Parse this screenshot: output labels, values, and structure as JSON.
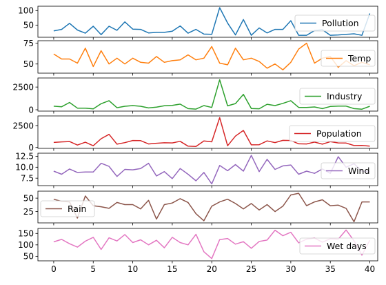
{
  "chart_data": [
    {
      "type": "line",
      "x": [
        0,
        1,
        2,
        3,
        4,
        5,
        6,
        7,
        8,
        9,
        10,
        11,
        12,
        13,
        14,
        15,
        16,
        17,
        18,
        19,
        20,
        21,
        22,
        23,
        24,
        25,
        26,
        27,
        28,
        29,
        30,
        31,
        32,
        33,
        34,
        35,
        36,
        37,
        38,
        39,
        40
      ],
      "series": [
        {
          "name": "Pollution",
          "color": "#1f77b4",
          "values": [
            30,
            35,
            56,
            33,
            22,
            46,
            17,
            46,
            32,
            61,
            36,
            35,
            23,
            25,
            25,
            29,
            47,
            22,
            35,
            19,
            18,
            110,
            57,
            16,
            69,
            15,
            40,
            23,
            35,
            35,
            65,
            15,
            15,
            31,
            34,
            15,
            16,
            18,
            20,
            15,
            90
          ]
        }
      ],
      "ylim": [
        8,
        115
      ],
      "yticks": [
        50,
        100
      ],
      "xlim": [
        -2,
        41
      ],
      "legend_position": "right"
    },
    {
      "type": "line",
      "x": [
        0,
        1,
        2,
        3,
        4,
        5,
        6,
        7,
        8,
        9,
        10,
        11,
        12,
        13,
        14,
        15,
        16,
        17,
        18,
        19,
        20,
        21,
        22,
        23,
        24,
        25,
        26,
        27,
        28,
        29,
        30,
        31,
        32,
        33,
        34,
        35,
        36,
        37,
        38,
        39,
        40
      ],
      "series": [
        {
          "name": "Temp",
          "color": "#ff7f0e",
          "values": [
            62,
            56,
            56,
            51,
            69,
            47,
            66,
            50,
            57,
            50,
            57,
            52,
            51,
            59,
            52,
            54,
            55,
            61,
            55,
            57,
            71,
            51,
            49,
            69,
            55,
            57,
            53,
            45,
            50,
            43,
            52,
            68,
            75,
            51,
            57,
            59,
            46,
            54,
            48,
            52,
            49
          ]
        }
      ],
      "ylim": [
        39,
        78
      ],
      "yticks": [
        50,
        75
      ],
      "xlim": [
        -2,
        41
      ],
      "legend_position": "right"
    },
    {
      "type": "line",
      "x": [
        0,
        1,
        2,
        3,
        4,
        5,
        6,
        7,
        8,
        9,
        10,
        11,
        12,
        13,
        14,
        15,
        16,
        17,
        18,
        19,
        20,
        21,
        22,
        23,
        24,
        25,
        26,
        27,
        28,
        29,
        30,
        31,
        32,
        33,
        34,
        35,
        36,
        37,
        38,
        39,
        40
      ],
      "series": [
        {
          "name": "Industry",
          "color": "#2ca02c",
          "values": [
            390,
            330,
            800,
            180,
            180,
            100,
            660,
            1000,
            220,
            380,
            460,
            380,
            200,
            280,
            440,
            480,
            620,
            120,
            70,
            460,
            250,
            3300,
            430,
            680,
            1700,
            130,
            110,
            600,
            460,
            700,
            1000,
            250,
            250,
            310,
            120,
            360,
            400,
            400,
            120,
            60,
            380
          ]
        }
      ],
      "ylim": [
        -150,
        3500
      ],
      "yticks": [
        0,
        2500
      ],
      "xlim": [
        -2,
        41
      ],
      "legend_position": "right"
    },
    {
      "type": "line",
      "x": [
        0,
        1,
        2,
        3,
        4,
        5,
        6,
        7,
        8,
        9,
        10,
        11,
        12,
        13,
        14,
        15,
        16,
        17,
        18,
        19,
        20,
        21,
        22,
        23,
        24,
        25,
        26,
        27,
        28,
        29,
        30,
        31,
        32,
        33,
        34,
        35,
        36,
        37,
        38,
        39,
        40
      ],
      "series": [
        {
          "name": "Population",
          "color": "#d62728",
          "values": [
            580,
            640,
            680,
            280,
            600,
            200,
            1000,
            1500,
            380,
            550,
            800,
            780,
            400,
            480,
            540,
            520,
            700,
            150,
            110,
            750,
            650,
            3400,
            200,
            1300,
            1950,
            300,
            320,
            750,
            560,
            810,
            800,
            420,
            400,
            620,
            380,
            660,
            520,
            510,
            220,
            240,
            160
          ]
        }
      ],
      "ylim": [
        -100,
        3600
      ],
      "yticks": [
        0,
        2500
      ],
      "xlim": [
        -2,
        41
      ],
      "legend_position": "right"
    },
    {
      "type": "line",
      "x": [
        0,
        1,
        2,
        3,
        4,
        5,
        6,
        7,
        8,
        9,
        10,
        11,
        12,
        13,
        14,
        15,
        16,
        17,
        18,
        19,
        20,
        21,
        22,
        23,
        24,
        25,
        26,
        27,
        28,
        29,
        30,
        31,
        32,
        33,
        34,
        35,
        36,
        37,
        38,
        39,
        40
      ],
      "series": [
        {
          "name": "Wind",
          "color": "#9467bd",
          "values": [
            9.1,
            8.4,
            9.6,
            8.8,
            8.9,
            8.9,
            10.9,
            10.2,
            7.9,
            9.5,
            9.4,
            9.7,
            10.9,
            8.0,
            9.0,
            7.4,
            9.7,
            8.4,
            6.9,
            8.8,
            6.2,
            10.4,
            9.2,
            10.6,
            9.1,
            12.7,
            9.0,
            11.8,
            9.5,
            10.3,
            10.5,
            8.4,
            9.1,
            8.6,
            9.6,
            8.6,
            12.4,
            10.0,
            10.8,
            9.1,
            9.0
          ]
        }
      ],
      "ylim": [
        5.8,
        13.2
      ],
      "yticks": [
        7.5,
        10.0,
        12.5
      ],
      "xlim": [
        -2,
        41
      ],
      "legend_position": "right"
    },
    {
      "type": "line",
      "x": [
        0,
        1,
        2,
        3,
        4,
        5,
        6,
        7,
        8,
        9,
        10,
        11,
        12,
        13,
        14,
        15,
        16,
        17,
        18,
        19,
        20,
        21,
        22,
        23,
        24,
        25,
        26,
        27,
        28,
        29,
        30,
        31,
        32,
        33,
        34,
        35,
        36,
        37,
        38,
        39,
        40
      ],
      "series": [
        {
          "name": "Rain",
          "color": "#8c564b",
          "values": [
            48,
            44,
            43,
            13,
            54,
            36,
            34,
            31,
            42,
            38,
            38,
            30,
            46,
            11,
            38,
            41,
            49,
            42,
            21,
            8,
            35,
            43,
            48,
            40,
            30,
            40,
            28,
            38,
            25,
            35,
            56,
            59,
            36,
            43,
            47,
            36,
            37,
            31,
            6,
            43,
            43
          ]
        }
      ],
      "ylim": [
        4,
        63
      ],
      "yticks": [
        25,
        50
      ],
      "xlim": [
        -2,
        41
      ],
      "legend_position": "left"
    },
    {
      "type": "line",
      "x": [
        0,
        1,
        2,
        3,
        4,
        5,
        6,
        7,
        8,
        9,
        10,
        11,
        12,
        13,
        14,
        15,
        16,
        17,
        18,
        19,
        20,
        21,
        22,
        23,
        24,
        25,
        26,
        27,
        28,
        29,
        30,
        31,
        32,
        33,
        34,
        35,
        36,
        37,
        38,
        39,
        40
      ],
      "series": [
        {
          "name": "Wet days",
          "color": "#e377c2",
          "values": [
            113,
            124,
            105,
            90,
            116,
            133,
            80,
            131,
            117,
            145,
            110,
            122,
            100,
            120,
            87,
            133,
            110,
            100,
            146,
            70,
            40,
            123,
            128,
            103,
            114,
            85,
            115,
            121,
            164,
            140,
            155,
            109,
            125,
            130,
            112,
            127,
            125,
            165,
            118,
            55,
            120
          ]
        }
      ],
      "ylim": [
        30,
        172
      ],
      "yticks": [
        50,
        100,
        150
      ],
      "xlim": [
        -2,
        41
      ],
      "legend_position": "right"
    }
  ],
  "xticks": [
    0,
    5,
    10,
    15,
    20,
    25,
    30,
    35,
    40
  ]
}
